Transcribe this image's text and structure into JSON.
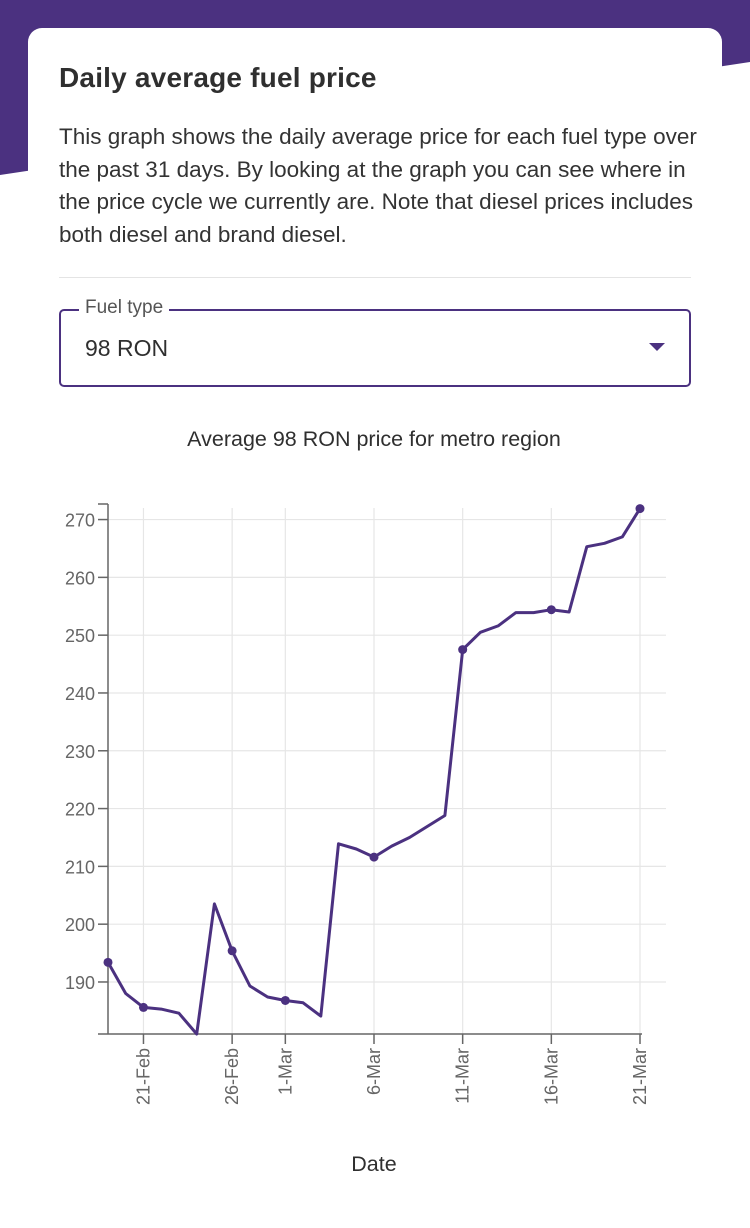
{
  "card": {
    "title": "Daily average fuel price",
    "description": "This graph shows the daily average price for each fuel type over the past 31 days. By looking at the graph you can see where in the price cycle we currently are. Note that diesel prices includes both diesel and brand diesel."
  },
  "fuel_select": {
    "legend": "Fuel type",
    "value": "98 RON"
  },
  "colors": {
    "brand": "#4b3180",
    "grid": "#e6e6e6",
    "axis": "#666666"
  },
  "chart_data": {
    "type": "line",
    "title": "Average 98 RON price for metro region",
    "xlabel": "Date",
    "ylabel": "",
    "ylim": [
      181,
      272
    ],
    "yticks": [
      190,
      200,
      210,
      220,
      230,
      240,
      250,
      260,
      270
    ],
    "xlim": [
      0,
      30
    ],
    "xtick_positions": [
      2,
      7,
      10,
      15,
      20,
      25,
      30
    ],
    "xtick_labels": [
      "21-Feb",
      "26-Feb",
      "1-Mar",
      "6-Mar",
      "11-Mar",
      "16-Mar",
      "21-Mar"
    ],
    "series": [
      {
        "name": "98 RON",
        "values": [
          193.4,
          188.0,
          185.6,
          185.3,
          184.6,
          181.0,
          203.5,
          195.4,
          189.3,
          187.4,
          186.8,
          186.4,
          184.1,
          213.9,
          213.0,
          211.6,
          213.5,
          215.0,
          216.9,
          218.8,
          247.5,
          250.5,
          251.6,
          253.9,
          253.9,
          254.4,
          254.0,
          265.3,
          265.9,
          267.0,
          271.9
        ],
        "marked_points": [
          0,
          2,
          7,
          10,
          15,
          20,
          25,
          30
        ]
      }
    ]
  }
}
